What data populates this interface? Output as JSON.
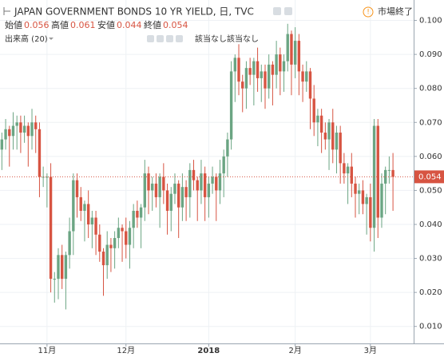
{
  "chart_data": {
    "type": "candlestick",
    "title": "JAPAN GOVERNMENT BONDS 10 YR YIELD, 日, TVC",
    "status": "市場終了",
    "ohlc_labels": {
      "open": "始値",
      "high": "高値",
      "low": "安値",
      "close": "終値"
    },
    "volume_label": "出来高 (20)",
    "volume_values": [
      "該当なし",
      "該当なし"
    ],
    "up_color": "#6ba583",
    "down_color": "#d75442",
    "open": [
      0.062,
      0.065,
      0.068,
      0.066,
      0.069,
      0.07,
      0.067,
      0.069,
      0.066,
      0.07,
      0.068,
      0.054,
      0.054,
      0.054,
      0.024,
      0.024,
      0.031,
      0.024,
      0.031,
      0.038,
      0.053,
      0.048,
      0.044,
      0.046,
      0.04,
      0.042,
      0.037,
      0.032,
      0.028,
      0.034,
      0.033,
      0.036,
      0.039,
      0.038,
      0.034,
      0.039,
      0.044,
      0.042,
      0.045,
      0.055,
      0.05,
      0.052,
      0.048,
      0.054,
      0.05,
      0.044,
      0.049,
      0.052,
      0.045,
      0.051,
      0.048,
      0.056,
      0.053,
      0.05,
      0.055,
      0.048,
      0.052,
      0.054,
      0.05,
      0.055,
      0.06,
      0.065,
      0.085,
      0.089,
      0.082,
      0.08,
      0.086,
      0.084,
      0.088,
      0.083,
      0.085,
      0.08,
      0.087,
      0.084,
      0.09,
      0.085,
      0.088,
      0.096,
      0.087,
      0.094,
      0.085,
      0.082,
      0.085,
      0.077,
      0.07,
      0.072,
      0.067,
      0.065,
      0.07,
      0.062,
      0.067,
      0.058,
      0.055,
      0.057,
      0.052,
      0.049,
      0.05,
      0.046,
      0.048,
      0.039,
      0.069,
      0.042,
      0.052,
      0.056,
      0.056
    ],
    "high": [
      0.067,
      0.071,
      0.069,
      0.073,
      0.072,
      0.072,
      0.072,
      0.07,
      0.074,
      0.072,
      0.07,
      0.057,
      0.055,
      0.058,
      0.026,
      0.033,
      0.034,
      0.032,
      0.042,
      0.055,
      0.055,
      0.051,
      0.047,
      0.05,
      0.044,
      0.044,
      0.04,
      0.033,
      0.038,
      0.036,
      0.038,
      0.042,
      0.04,
      0.042,
      0.041,
      0.046,
      0.047,
      0.046,
      0.059,
      0.057,
      0.054,
      0.055,
      0.055,
      0.058,
      0.052,
      0.051,
      0.055,
      0.053,
      0.055,
      0.053,
      0.058,
      0.059,
      0.054,
      0.059,
      0.057,
      0.054,
      0.057,
      0.055,
      0.059,
      0.062,
      0.067,
      0.088,
      0.09,
      0.093,
      0.084,
      0.088,
      0.089,
      0.089,
      0.092,
      0.087,
      0.087,
      0.09,
      0.088,
      0.094,
      0.092,
      0.09,
      0.099,
      0.097,
      0.098,
      0.096,
      0.087,
      0.088,
      0.086,
      0.081,
      0.074,
      0.074,
      0.07,
      0.071,
      0.074,
      0.069,
      0.069,
      0.061,
      0.058,
      0.061,
      0.054,
      0.052,
      0.053,
      0.049,
      0.052,
      0.071,
      0.071,
      0.055,
      0.057,
      0.06,
      0.061
    ],
    "low": [
      0.056,
      0.062,
      0.057,
      0.062,
      0.062,
      0.061,
      0.064,
      0.057,
      0.062,
      0.061,
      0.048,
      0.051,
      0.045,
      0.02,
      0.017,
      0.018,
      0.021,
      0.015,
      0.027,
      0.031,
      0.042,
      0.041,
      0.035,
      0.036,
      0.033,
      0.031,
      0.029,
      0.019,
      0.024,
      0.026,
      0.027,
      0.033,
      0.029,
      0.03,
      0.027,
      0.033,
      0.039,
      0.033,
      0.041,
      0.043,
      0.044,
      0.045,
      0.039,
      0.046,
      0.037,
      0.038,
      0.046,
      0.036,
      0.041,
      0.041,
      0.042,
      0.05,
      0.041,
      0.046,
      0.041,
      0.042,
      0.049,
      0.041,
      0.046,
      0.048,
      0.054,
      0.062,
      0.076,
      0.078,
      0.073,
      0.074,
      0.081,
      0.075,
      0.079,
      0.076,
      0.074,
      0.077,
      0.075,
      0.08,
      0.078,
      0.079,
      0.085,
      0.078,
      0.083,
      0.078,
      0.076,
      0.079,
      0.068,
      0.066,
      0.063,
      0.061,
      0.062,
      0.056,
      0.058,
      0.055,
      0.052,
      0.052,
      0.046,
      0.048,
      0.042,
      0.043,
      0.043,
      0.037,
      0.035,
      0.032,
      0.036,
      0.039,
      0.043,
      0.052,
      0.044
    ],
    "close": [
      0.065,
      0.068,
      0.066,
      0.069,
      0.07,
      0.067,
      0.069,
      0.066,
      0.07,
      0.068,
      0.054,
      0.054,
      0.054,
      0.024,
      0.024,
      0.031,
      0.024,
      0.031,
      0.038,
      0.053,
      0.048,
      0.044,
      0.046,
      0.04,
      0.042,
      0.037,
      0.032,
      0.028,
      0.034,
      0.033,
      0.036,
      0.039,
      0.038,
      0.034,
      0.039,
      0.044,
      0.042,
      0.045,
      0.055,
      0.05,
      0.052,
      0.048,
      0.054,
      0.05,
      0.044,
      0.049,
      0.052,
      0.045,
      0.051,
      0.048,
      0.056,
      0.053,
      0.05,
      0.055,
      0.048,
      0.052,
      0.054,
      0.05,
      0.055,
      0.06,
      0.065,
      0.085,
      0.089,
      0.082,
      0.08,
      0.086,
      0.084,
      0.088,
      0.083,
      0.085,
      0.08,
      0.087,
      0.084,
      0.09,
      0.085,
      0.088,
      0.096,
      0.087,
      0.094,
      0.085,
      0.082,
      0.085,
      0.077,
      0.07,
      0.072,
      0.067,
      0.065,
      0.07,
      0.062,
      0.067,
      0.058,
      0.055,
      0.057,
      0.052,
      0.049,
      0.05,
      0.046,
      0.048,
      0.039,
      0.069,
      0.042,
      0.052,
      0.056,
      0.056,
      0.054
    ],
    "xlim": [
      -0.5,
      109.5
    ],
    "xticks": [
      {
        "value": 12,
        "label": "11月"
      },
      {
        "value": 33,
        "label": "12月"
      },
      {
        "value": 55,
        "label": "2018"
      },
      {
        "value": 78,
        "label": "2月"
      },
      {
        "value": 98,
        "label": "3月"
      }
    ],
    "ylim": [
      0.005,
      0.106
    ],
    "yticks": [
      {
        "value": 0.01,
        "label": "0.010"
      },
      {
        "value": 0.02,
        "label": "0.020"
      },
      {
        "value": 0.03,
        "label": "0.030"
      },
      {
        "value": 0.04,
        "label": "0.040"
      },
      {
        "value": 0.05,
        "label": "0.050"
      },
      {
        "value": 0.06,
        "label": "0.060"
      },
      {
        "value": 0.07,
        "label": "0.070"
      },
      {
        "value": 0.08,
        "label": "0.080"
      },
      {
        "value": 0.09,
        "label": "0.090"
      },
      {
        "value": 0.1,
        "label": "0.100"
      }
    ],
    "grid": true
  }
}
